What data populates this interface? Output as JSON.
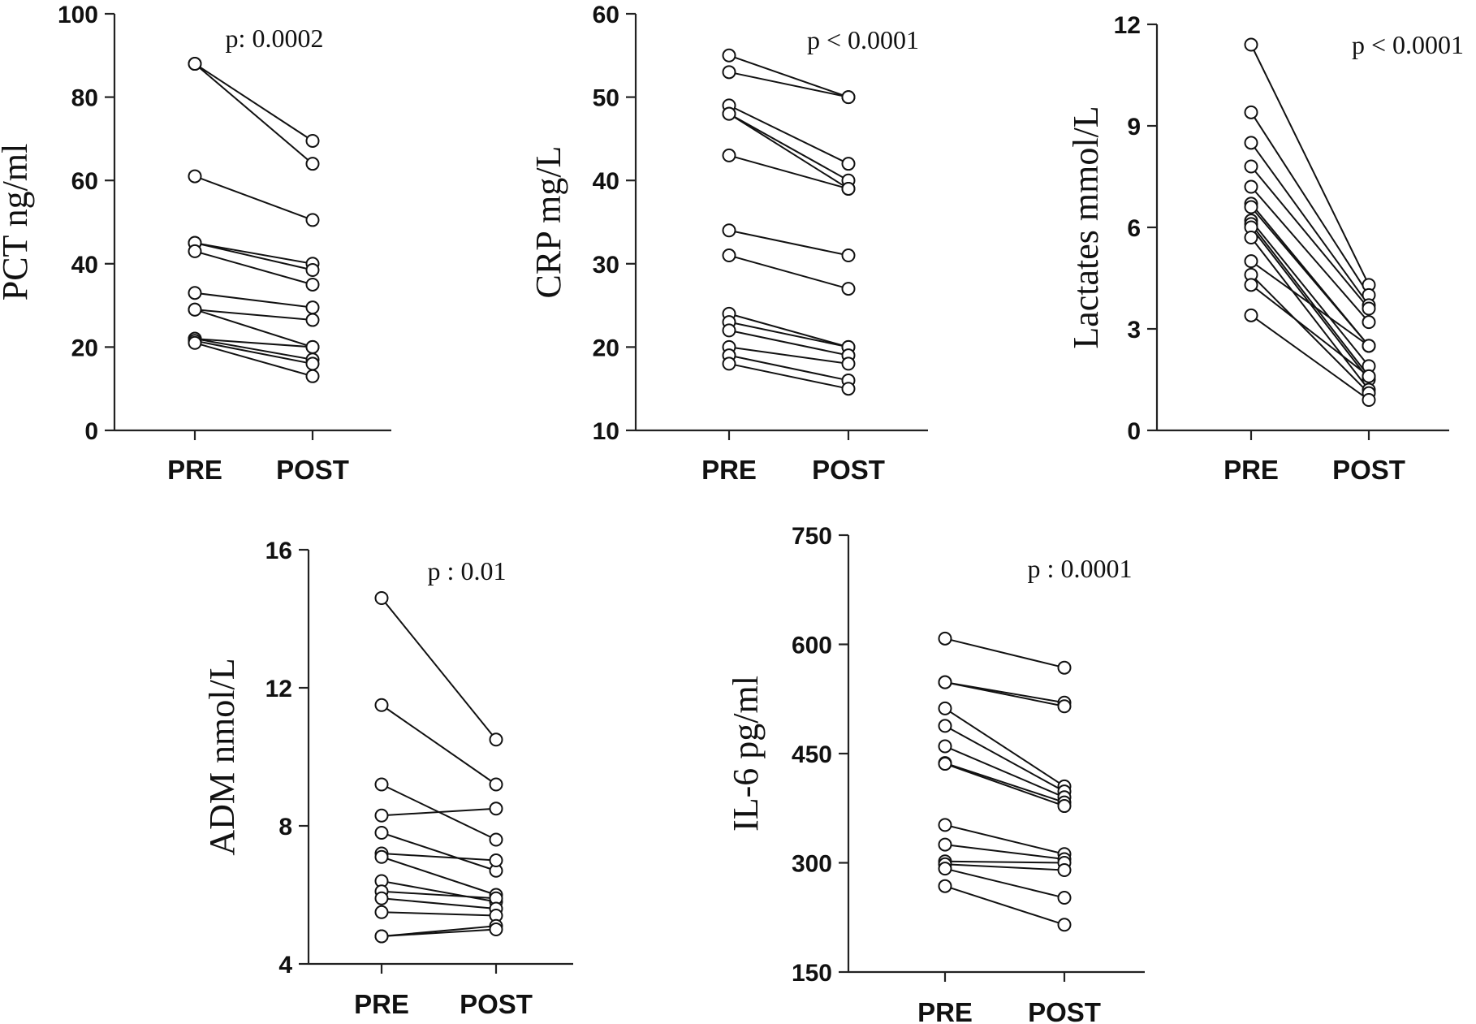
{
  "chart_data": [
    {
      "type": "line",
      "categories": [
        "PRE",
        "POST"
      ],
      "ylabel": "PCT ng/ml",
      "annotation": "p: 0.0002",
      "ylim": [
        0,
        100
      ],
      "yticks": [
        0,
        20,
        40,
        60,
        80,
        100
      ],
      "pairs": [
        [
          88,
          69.5
        ],
        [
          88,
          64
        ],
        [
          61,
          50.5
        ],
        [
          45,
          40
        ],
        [
          45,
          38.5
        ],
        [
          43,
          35
        ],
        [
          33,
          29.5
        ],
        [
          29,
          26.5
        ],
        [
          29,
          20
        ],
        [
          22,
          20
        ],
        [
          22,
          17
        ],
        [
          21.5,
          16
        ],
        [
          21,
          13
        ]
      ]
    },
    {
      "type": "line",
      "categories": [
        "PRE",
        "POST"
      ],
      "ylabel": "CRP mg/L",
      "annotation": "p < 0.0001",
      "ylim": [
        10,
        60
      ],
      "yticks": [
        10,
        20,
        30,
        40,
        50,
        60
      ],
      "pairs": [
        [
          55,
          50
        ],
        [
          53,
          50
        ],
        [
          49,
          42
        ],
        [
          48,
          40
        ],
        [
          48,
          39
        ],
        [
          43,
          39
        ],
        [
          34,
          31
        ],
        [
          31,
          27
        ],
        [
          24,
          20
        ],
        [
          23,
          20
        ],
        [
          22,
          19
        ],
        [
          20,
          18
        ],
        [
          19,
          16
        ],
        [
          18,
          15
        ]
      ]
    },
    {
      "type": "line",
      "categories": [
        "PRE",
        "POST"
      ],
      "ylabel": "Lactates mmol/L",
      "annotation": "p < 0.0001",
      "ylim": [
        0,
        12
      ],
      "yticks": [
        0,
        3,
        6,
        9,
        12
      ],
      "pairs": [
        [
          11.4,
          4.3
        ],
        [
          9.4,
          4.0
        ],
        [
          8.5,
          3.7
        ],
        [
          7.8,
          3.6
        ],
        [
          7.2,
          3.2
        ],
        [
          6.7,
          2.5
        ],
        [
          6.6,
          2.5
        ],
        [
          6.2,
          1.9
        ],
        [
          6.1,
          1.6
        ],
        [
          6.0,
          1.5
        ],
        [
          5.7,
          1.2
        ],
        [
          5.0,
          2.5
        ],
        [
          4.6,
          1.1
        ],
        [
          4.3,
          1.6
        ],
        [
          3.4,
          0.9
        ]
      ]
    },
    {
      "type": "line",
      "categories": [
        "PRE",
        "POST"
      ],
      "ylabel": "ADM nmol/L",
      "annotation": "p : 0.01",
      "ylim": [
        4,
        16
      ],
      "yticks": [
        4,
        8,
        12,
        16
      ],
      "pairs": [
        [
          14.6,
          10.5
        ],
        [
          11.5,
          9.2
        ],
        [
          9.2,
          7.6
        ],
        [
          8.3,
          8.5
        ],
        [
          7.8,
          6.7
        ],
        [
          7.2,
          7.0
        ],
        [
          7.1,
          6.0
        ],
        [
          6.4,
          5.8
        ],
        [
          6.1,
          5.9
        ],
        [
          5.9,
          5.6
        ],
        [
          5.5,
          5.4
        ],
        [
          4.8,
          5.1
        ],
        [
          4.8,
          5.0
        ]
      ]
    },
    {
      "type": "line",
      "categories": [
        "PRE",
        "POST"
      ],
      "ylabel": "IL-6  pg/ml",
      "annotation": "p : 0.0001",
      "ylim": [
        150,
        750
      ],
      "yticks": [
        150,
        300,
        450,
        600,
        750
      ],
      "pairs": [
        [
          608,
          568
        ],
        [
          548,
          520
        ],
        [
          548,
          515
        ],
        [
          512,
          405
        ],
        [
          488,
          398
        ],
        [
          460,
          390
        ],
        [
          437,
          383
        ],
        [
          436,
          378
        ],
        [
          352,
          312
        ],
        [
          325,
          305
        ],
        [
          302,
          300
        ],
        [
          298,
          290
        ],
        [
          292,
          252
        ],
        [
          268,
          215
        ]
      ]
    }
  ]
}
